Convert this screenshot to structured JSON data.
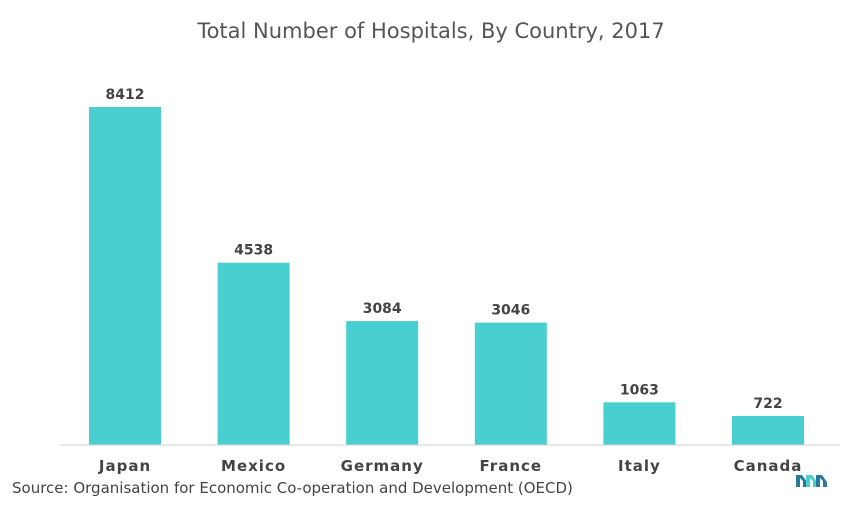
{
  "chart_data": {
    "type": "bar",
    "title": "Total Number of Hospitals, By Country, 2017",
    "categories": [
      "Japan",
      "Mexico",
      "Germany",
      "France",
      "Italy",
      "Canada"
    ],
    "values": [
      8412,
      4538,
      3084,
      3046,
      1063,
      722
    ],
    "xlabel": "",
    "ylabel": "",
    "ylim": [
      0,
      8412
    ],
    "grid": false,
    "bar_color": "#49cfd0",
    "data_labels": true
  },
  "source": "Source: Organisation for Economic Co-operation and Development (OECD)",
  "logo": {
    "name": "mordor-logo-icon",
    "colors": [
      "#2a7a9a",
      "#49cfd0"
    ]
  }
}
